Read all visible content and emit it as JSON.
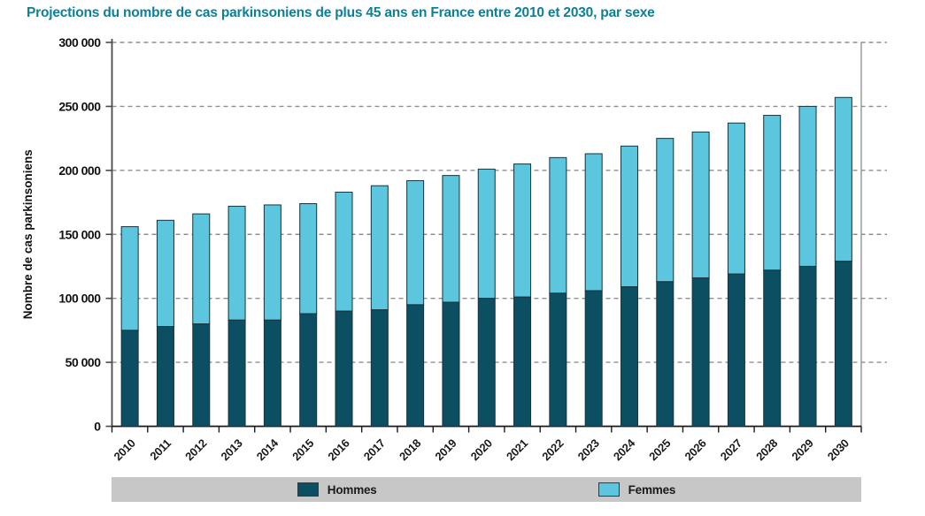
{
  "header": {
    "title": "Projections du nombre de cas parkinsoniens de plus 45 ans en France entre 2010 et 2030, par sexe"
  },
  "colors": {
    "title_text": "#0e7f99",
    "hommes": "#0c4e62",
    "femmes": "#5bc6dd",
    "bar_outline": "#16333f",
    "gridline": "#8f8f8f",
    "y_axis_line": "#4a4a4a",
    "x_axis_line": "#1a1a1a",
    "right_border": "#8c8c8c",
    "legend_background": "#c7c7c7",
    "tick_label_text": "#111111"
  },
  "chart_data": {
    "type": "bar",
    "stacked": true,
    "title": "Projections du nombre de cas parkinsoniens de plus 45 ans en France entre 2010 et 2030, par sexe",
    "xlabel": "",
    "ylabel": "Nombre de cas parkinsoniens",
    "ylim": [
      0,
      300000
    ],
    "ytick_step": 50000,
    "ytick_labels": [
      "0",
      "50 000",
      "100 000",
      "150 000",
      "200 000",
      "250 000",
      "300 000"
    ],
    "grid": "horizontal-dashed",
    "legend_position": "bottom",
    "categories": [
      "2010",
      "2011",
      "2012",
      "2013",
      "2014",
      "2015",
      "2016",
      "2017",
      "2018",
      "2019",
      "2020",
      "2021",
      "2022",
      "2023",
      "2024",
      "2025",
      "2026",
      "2027",
      "2028",
      "2029",
      "2030"
    ],
    "series": [
      {
        "name": "Hommes",
        "color": "#0c4e62",
        "values": [
          75000,
          78000,
          80000,
          83000,
          83000,
          88000,
          90000,
          91000,
          95000,
          97000,
          100000,
          101000,
          104000,
          106000,
          109000,
          113000,
          116000,
          119000,
          122000,
          125000,
          129000
        ]
      },
      {
        "name": "Femmes",
        "color": "#5bc6dd",
        "values": [
          81000,
          83000,
          86000,
          89000,
          90000,
          86000,
          93000,
          97000,
          97000,
          99000,
          101000,
          104000,
          106000,
          107000,
          110000,
          112000,
          114000,
          118000,
          121000,
          125000,
          128000
        ]
      }
    ],
    "totals": [
      156000,
      161000,
      166000,
      172000,
      173000,
      174000,
      183000,
      188000,
      192000,
      196000,
      201000,
      205000,
      210000,
      213000,
      219000,
      225000,
      230000,
      237000,
      243000,
      250000,
      257000
    ]
  },
  "legend": {
    "items": [
      {
        "label": "Hommes",
        "color": "#0c4e62"
      },
      {
        "label": "Femmes",
        "color": "#5bc6dd"
      }
    ]
  }
}
